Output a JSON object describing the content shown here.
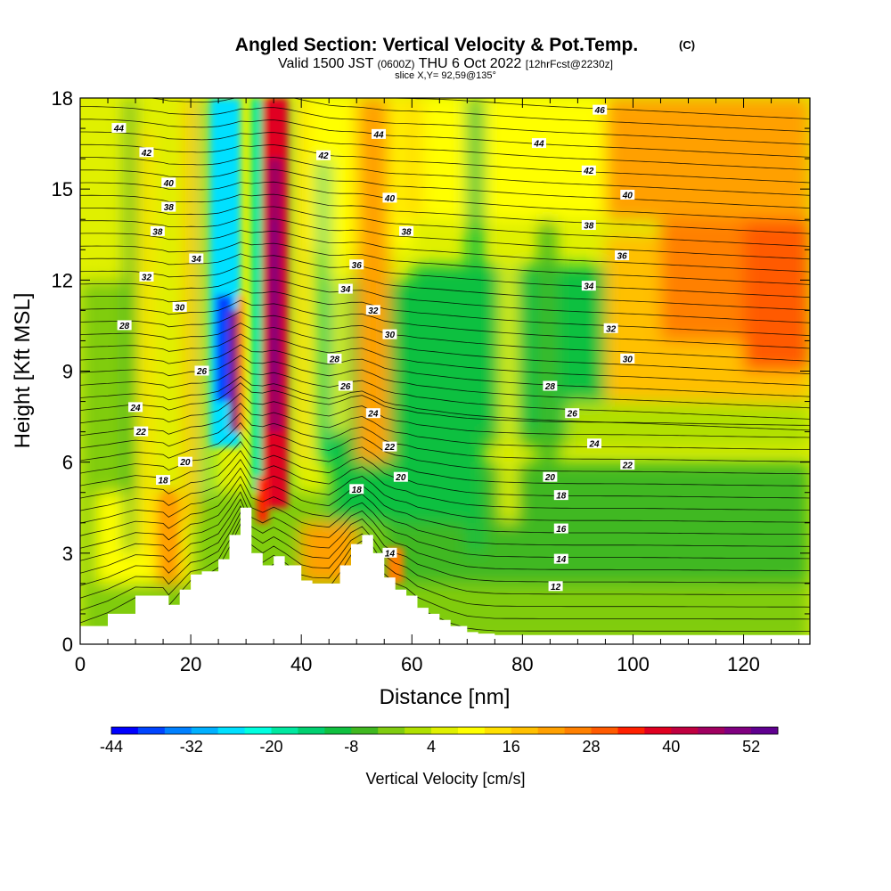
{
  "header": {
    "title_main": "Angled Section: Vertical Velocity & Pot.Temp.",
    "title_unit": "(C)",
    "valid_a": "Valid 1500 JST",
    "valid_b": "(0600Z)",
    "valid_c": "THU 6 Oct 2022",
    "valid_d": "[12hrFcst@2230z]",
    "slice": "slice X,Y= 92,59@135°"
  },
  "colors": {
    "terrain": "#ffffff",
    "contour": "#000000",
    "palette": [
      "#0000ff",
      "#0044ff",
      "#0080ff",
      "#00b0ff",
      "#00e0ff",
      "#00ffe0",
      "#00e8a0",
      "#00d070",
      "#10c040",
      "#40b820",
      "#80cc10",
      "#b0e000",
      "#e0f000",
      "#ffff00",
      "#ffe000",
      "#ffc000",
      "#ffa000",
      "#ff8000",
      "#ff5a00",
      "#ff2000",
      "#e00020",
      "#c00040",
      "#a00060",
      "#800080",
      "#600090"
    ]
  },
  "chart_data": {
    "type": "heatmap",
    "title": "Angled Section: Vertical Velocity & Pot.Temp. (C)",
    "xlabel": "Distance [nm]",
    "ylabel": "Height [Kft MSL]",
    "xlim": [
      0,
      132
    ],
    "ylim": [
      0,
      18
    ],
    "x_ticks": [
      0,
      20,
      40,
      60,
      80,
      100,
      120
    ],
    "y_ticks": [
      0,
      3,
      6,
      9,
      12,
      15,
      18
    ],
    "colorbar": {
      "label": "Vertical Velocity [cm/s]",
      "tick_labels": [
        "-44",
        "-32",
        "-20",
        "-8",
        "4",
        "16",
        "28",
        "40",
        "52"
      ],
      "min": -44,
      "max": 56
    },
    "field_features": [
      {
        "kind": "updraft",
        "x": 34,
        "base_z": 4,
        "top_z": 18,
        "peak_w": 52
      },
      {
        "kind": "downdraft",
        "x": 25,
        "base_z": 7,
        "top_z": 18,
        "peak_w": -36
      },
      {
        "kind": "updraft",
        "x": 28,
        "base_z": 7,
        "top_z": 11,
        "peak_w": 48
      },
      {
        "kind": "broad_ascent",
        "x": 115,
        "base_z": 8,
        "top_z": 18,
        "peak_w": 28
      },
      {
        "kind": "broad_descent",
        "x": 65,
        "base_z": 3,
        "top_z": 12,
        "peak_w": -10
      }
    ],
    "terrain_profile": {
      "x": [
        0,
        5,
        10,
        15,
        16,
        18,
        20,
        22,
        25,
        27,
        29,
        31,
        33,
        35,
        37,
        40,
        42,
        45,
        47,
        49,
        51,
        53,
        55,
        57,
        59,
        61,
        63,
        65,
        67,
        70,
        72,
        75,
        132
      ],
      "z": [
        0.6,
        1.0,
        1.6,
        1.6,
        1.3,
        1.8,
        2.3,
        2.4,
        2.8,
        3.6,
        4.5,
        3.0,
        2.6,
        2.9,
        2.6,
        2.1,
        2.0,
        2.0,
        2.6,
        3.3,
        3.6,
        3.0,
        2.2,
        1.8,
        1.6,
        1.2,
        1.0,
        0.8,
        0.6,
        0.4,
        0.35,
        0.3,
        0.3
      ]
    },
    "contour_labels": [
      {
        "text": "44",
        "x": 7,
        "z": 17.0
      },
      {
        "text": "42",
        "x": 12,
        "z": 16.2
      },
      {
        "text": "40",
        "x": 16,
        "z": 15.2
      },
      {
        "text": "38",
        "x": 16,
        "z": 14.4
      },
      {
        "text": "38",
        "x": 14,
        "z": 13.6
      },
      {
        "text": "34",
        "x": 21,
        "z": 12.7
      },
      {
        "text": "32",
        "x": 12,
        "z": 12.1
      },
      {
        "text": "30",
        "x": 18,
        "z": 11.1
      },
      {
        "text": "28",
        "x": 8,
        "z": 10.5
      },
      {
        "text": "26",
        "x": 22,
        "z": 9.0
      },
      {
        "text": "24",
        "x": 10,
        "z": 7.8
      },
      {
        "text": "22",
        "x": 11,
        "z": 7.0
      },
      {
        "text": "20",
        "x": 19,
        "z": 6.0
      },
      {
        "text": "18",
        "x": 15,
        "z": 5.4
      },
      {
        "text": "44",
        "x": 54,
        "z": 16.8
      },
      {
        "text": "42",
        "x": 44,
        "z": 16.1
      },
      {
        "text": "40",
        "x": 56,
        "z": 14.7
      },
      {
        "text": "38",
        "x": 59,
        "z": 13.6
      },
      {
        "text": "36",
        "x": 50,
        "z": 12.5
      },
      {
        "text": "34",
        "x": 48,
        "z": 11.7
      },
      {
        "text": "32",
        "x": 53,
        "z": 11.0
      },
      {
        "text": "30",
        "x": 56,
        "z": 10.2
      },
      {
        "text": "28",
        "x": 46,
        "z": 9.4
      },
      {
        "text": "26",
        "x": 48,
        "z": 8.5
      },
      {
        "text": "24",
        "x": 53,
        "z": 7.6
      },
      {
        "text": "22",
        "x": 56,
        "z": 6.5
      },
      {
        "text": "20",
        "x": 58,
        "z": 5.5
      },
      {
        "text": "18",
        "x": 50,
        "z": 5.1
      },
      {
        "text": "14",
        "x": 56,
        "z": 3.0
      },
      {
        "text": "46",
        "x": 94,
        "z": 17.6
      },
      {
        "text": "44",
        "x": 83,
        "z": 16.5
      },
      {
        "text": "42",
        "x": 92,
        "z": 15.6
      },
      {
        "text": "40",
        "x": 99,
        "z": 14.8
      },
      {
        "text": "38",
        "x": 92,
        "z": 13.8
      },
      {
        "text": "36",
        "x": 98,
        "z": 12.8
      },
      {
        "text": "34",
        "x": 92,
        "z": 11.8
      },
      {
        "text": "32",
        "x": 96,
        "z": 10.4
      },
      {
        "text": "30",
        "x": 99,
        "z": 9.4
      },
      {
        "text": "28",
        "x": 85,
        "z": 8.5
      },
      {
        "text": "26",
        "x": 89,
        "z": 7.6
      },
      {
        "text": "24",
        "x": 93,
        "z": 6.6
      },
      {
        "text": "22",
        "x": 99,
        "z": 5.9
      },
      {
        "text": "20",
        "x": 85,
        "z": 5.5
      },
      {
        "text": "18",
        "x": 87,
        "z": 4.9
      },
      {
        "text": "16",
        "x": 87,
        "z": 3.8
      },
      {
        "text": "14",
        "x": 87,
        "z": 2.8
      },
      {
        "text": "12",
        "x": 86,
        "z": 1.9
      }
    ]
  }
}
